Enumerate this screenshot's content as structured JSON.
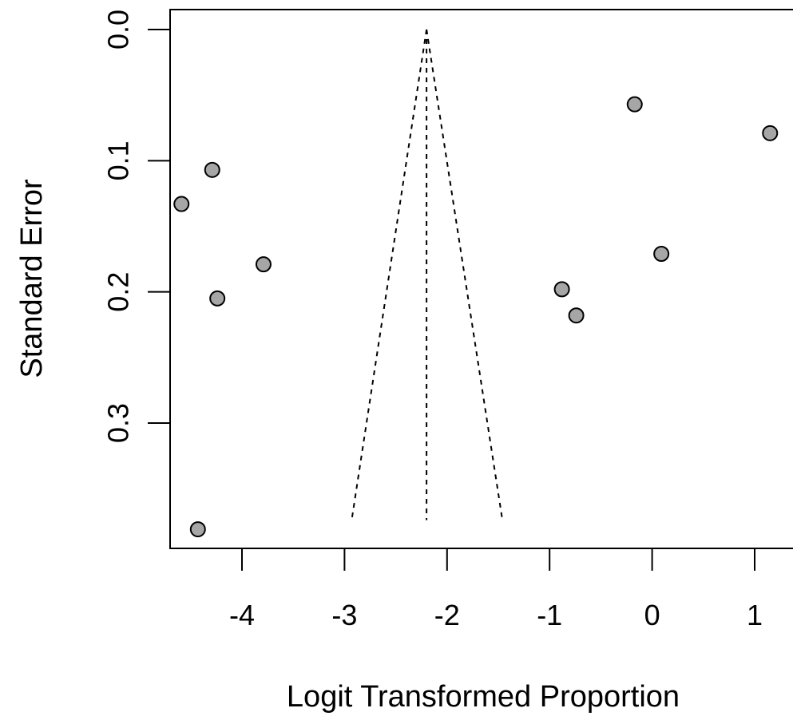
{
  "chart_data": {
    "type": "scatter",
    "title": "",
    "xlabel": "Logit Transformed Proportion",
    "ylabel": "Standard Error",
    "xlim": [
      -4.7,
      1.4
    ],
    "ylim": [
      0,
      0.395
    ],
    "y_reversed": true,
    "grid": false,
    "x_ticks": [
      -4,
      -3,
      -2,
      -1,
      0,
      1
    ],
    "x_tick_labels": [
      "-4",
      "-3",
      "-2",
      "-1",
      "0",
      "1"
    ],
    "y_ticks": [
      0,
      0.1,
      0.2,
      0.3
    ],
    "y_tick_labels": [
      "0.0",
      "0.1",
      "0.2",
      "0.3"
    ],
    "points": [
      {
        "x": -4.59,
        "y": 0.133
      },
      {
        "x": -4.29,
        "y": 0.107
      },
      {
        "x": -4.43,
        "y": 0.381
      },
      {
        "x": -3.79,
        "y": 0.179
      },
      {
        "x": -4.24,
        "y": 0.205
      },
      {
        "x": -0.88,
        "y": 0.198
      },
      {
        "x": -0.74,
        "y": 0.218
      },
      {
        "x": -0.17,
        "y": 0.057
      },
      {
        "x": 0.09,
        "y": 0.171
      },
      {
        "x": 1.15,
        "y": 0.079
      }
    ],
    "funnel": {
      "center": -2.2,
      "left_bottom": -2.93,
      "right_bottom": -1.46,
      "se_max": 0.374
    }
  }
}
